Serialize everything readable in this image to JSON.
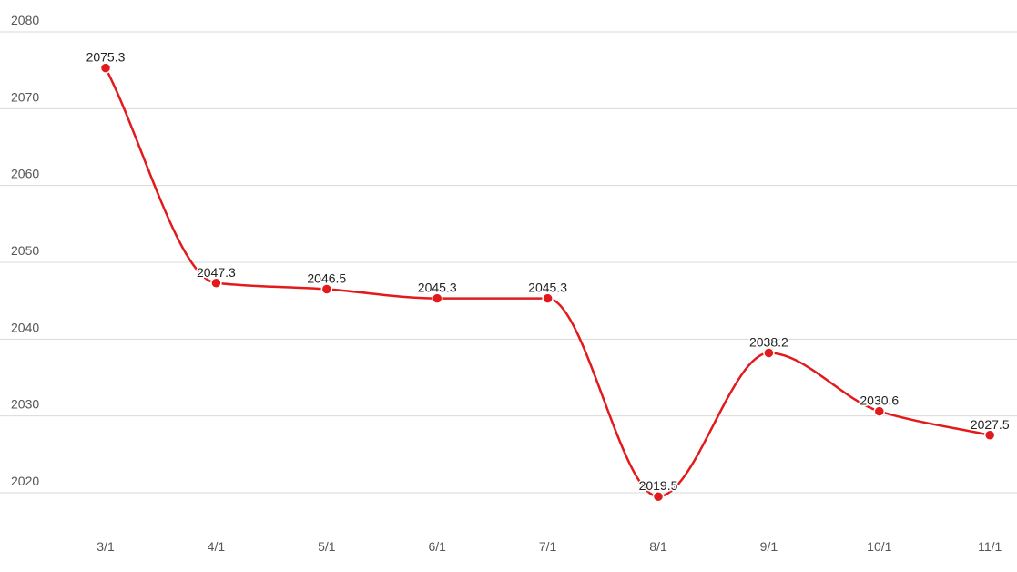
{
  "chart_data": {
    "type": "line",
    "title": "",
    "xlabel": "",
    "ylabel": "",
    "categories": [
      "3/1",
      "4/1",
      "5/1",
      "6/1",
      "7/1",
      "8/1",
      "9/1",
      "10/1",
      "11/1"
    ],
    "series": [
      {
        "values": [
          2075.3,
          2047.3,
          2046.5,
          2045.3,
          2045.3,
          2019.5,
          2038.2,
          2030.6,
          2027.5
        ],
        "color": "#e31a1c",
        "smooth": true,
        "markers": true
      }
    ],
    "data_labels": [
      "2075.3",
      "2047.3",
      "2046.5",
      "2045.3",
      "2045.3",
      "2019.5",
      "2038.2",
      "2030.6",
      "2027.5"
    ],
    "yticks": [
      "2020",
      "2030",
      "2040",
      "2050",
      "2060",
      "2070",
      "2080"
    ],
    "ylim": [
      2020,
      2080
    ],
    "grid": true,
    "legend": "none"
  }
}
